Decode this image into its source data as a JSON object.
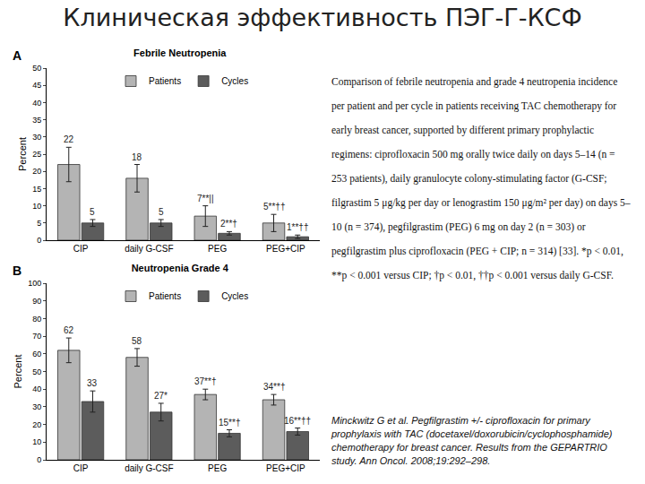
{
  "slide_title": "Клиническая эффективность ПЭГ-Г-КСФ",
  "chart_data": [
    {
      "type": "bar",
      "panel": "A",
      "title": "Febrile Neutropenia",
      "ylabel": "Percent",
      "categories": [
        "CIP",
        "daily G-CSF",
        "PEG",
        "PEG+CIP"
      ],
      "series": [
        {
          "name": "Patients",
          "color": "#b4b4b4",
          "values": [
            22,
            18,
            7,
            5
          ],
          "value_labels": [
            "22",
            "18",
            "7**||",
            "5**††"
          ],
          "error": [
            5,
            4,
            3,
            2.5
          ]
        },
        {
          "name": "Cycles",
          "color": "#5c5c5c",
          "values": [
            5,
            5,
            2,
            1
          ],
          "value_labels": [
            "5",
            "5",
            "2**†",
            "1**††"
          ],
          "error": [
            1,
            1,
            0.5,
            0.5
          ]
        }
      ],
      "ylim": [
        0,
        50
      ],
      "yticks": [
        0,
        5,
        10,
        15,
        20,
        25,
        30,
        35,
        40,
        45,
        50
      ],
      "grid": false,
      "legend": "top",
      "data_labels": true
    },
    {
      "type": "bar",
      "panel": "B",
      "title": "Neutropenia Grade 4",
      "ylabel": "Percent",
      "categories": [
        "CIP",
        "daily G-CSF",
        "PEG",
        "PEG+CIP"
      ],
      "series": [
        {
          "name": "Patients",
          "color": "#b4b4b4",
          "values": [
            62,
            58,
            37,
            34
          ],
          "value_labels": [
            "62",
            "58",
            "37**†",
            "34**†"
          ],
          "error": [
            7,
            5,
            3,
            3
          ]
        },
        {
          "name": "Cycles",
          "color": "#5c5c5c",
          "values": [
            33,
            27,
            15,
            16
          ],
          "value_labels": [
            "33",
            "27*",
            "15**†",
            "16**††"
          ],
          "error": [
            6,
            5,
            2,
            2
          ]
        }
      ],
      "ylim": [
        0,
        100
      ],
      "yticks": [
        0,
        10,
        20,
        30,
        40,
        50,
        60,
        70,
        80,
        90,
        100
      ],
      "grid": false,
      "legend": "top",
      "data_labels": true
    }
  ],
  "caption": "Comparison of febrile neutropenia and grade 4 neutropenia incidence per patient and per cycle in patients receiving TAC chemotherapy for early breast cancer, supported by different primary prophylactic regimens: ciprofloxacin 500 mg orally twice daily on days 5–14 (n = 253 patients), daily granulocyte colony-stimulating factor (G-CSF; filgrastim 5 μg/kg per day or lenograstim 150 μg/m² per day) on days 5–10 (n = 374), pegfilgrastim (PEG) 6 mg on day 2 (n = 303) or pegfilgrastim plus ciprofloxacin (PEG + CIP; n = 314) [33]. *p < 0.01, **p < 0.001 versus CIP; †p < 0.01, ††p < 0.001 versus daily G-CSF.",
  "citation": "Minckwitz G et al. Pegfilgrastim +/- ciprofloxacin for primary prophylaxis with TAC (docetaxel/doxorubicin/cyclophosphamide) chemotherapy for breast cancer. Results from the GEPARTRIO study. Ann Oncol. 2008;19:292–298."
}
